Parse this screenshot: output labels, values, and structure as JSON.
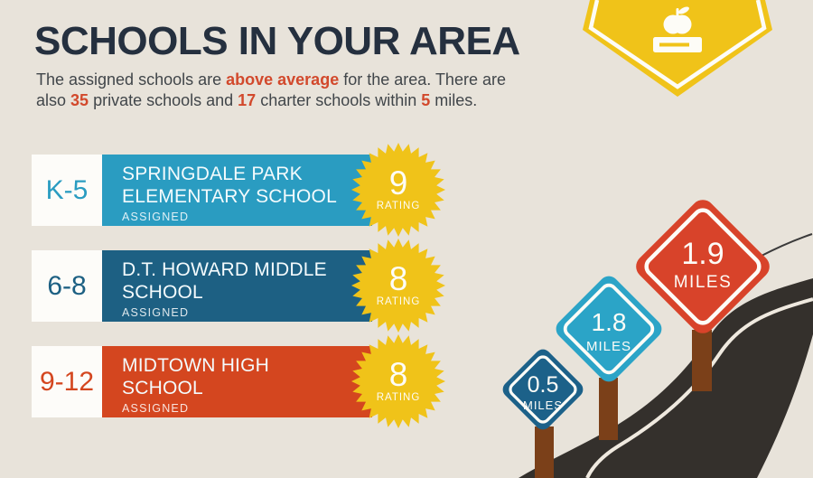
{
  "header": {
    "title": "SCHOOLS IN YOUR AREA",
    "subtitle_lines": [
      [
        {
          "t": "The assigned schools are ",
          "em": false
        },
        {
          "t": "above average",
          "em": true
        },
        {
          "t": " for the area. There are",
          "em": false
        }
      ],
      [
        {
          "t": "also ",
          "em": false
        },
        {
          "t": "35",
          "em": true
        },
        {
          "t": " private schools and ",
          "em": false
        },
        {
          "t": "17",
          "em": true
        },
        {
          "t": " charter schools within ",
          "em": false
        },
        {
          "t": "5",
          "em": true
        },
        {
          "t": " miles.",
          "em": false
        }
      ]
    ]
  },
  "schools": [
    {
      "grades": "K-5",
      "name": "SPRINGDALE PARK\nELEMENTARY SCHOOL",
      "status": "ASSIGNED",
      "rating": "9",
      "rating_label": "RATING",
      "color": "#2a9cc1"
    },
    {
      "grades": "6-8",
      "name": "D.T. HOWARD MIDDLE\nSCHOOL",
      "status": "ASSIGNED",
      "rating": "8",
      "rating_label": "RATING",
      "color": "#1d6083"
    },
    {
      "grades": "9-12",
      "name": "MIDTOWN HIGH\nSCHOOL",
      "status": "ASSIGNED",
      "rating": "8",
      "rating_label": "RATING",
      "color": "#d4461f"
    }
  ],
  "distance_signs": [
    {
      "distance": "0.5",
      "unit": "MILES",
      "color": "#1c6189"
    },
    {
      "distance": "1.8",
      "unit": "MILES",
      "color": "#2ba4c7"
    },
    {
      "distance": "1.9",
      "unit": "MILES",
      "color": "#d8432a"
    }
  ],
  "colors": {
    "background": "#e8e3da",
    "title_navy": "#25303f",
    "body_text": "#41464a",
    "accent_red": "#d2492c",
    "badge_yellow": "#f0c319",
    "road_dark": "#34302c",
    "road_line": "#efe9df",
    "post_brown": "#7b4019",
    "grade_box_white": "#fdfcf9"
  }
}
